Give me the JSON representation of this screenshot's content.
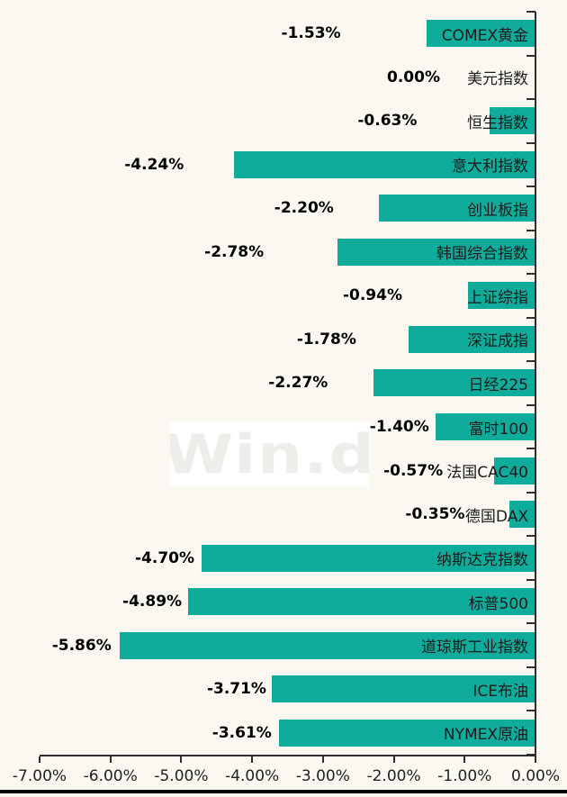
{
  "watermark": {
    "text": "Win.d"
  },
  "colors": {
    "bar": "#0FAC9B",
    "background": "#FAF8F0",
    "axis": "#2E2E2E",
    "value_label": "#000000",
    "category_label": "#1C1C1C",
    "watermark_bg": "#FFFFFF",
    "watermark_text": "#EDEDEA",
    "bottom_bar": "#000000"
  },
  "chart_data": {
    "type": "bar",
    "orientation": "horizontal",
    "title": "",
    "xlabel": "",
    "ylabel": "",
    "xlim": [
      -7,
      0
    ],
    "grid": false,
    "legend": false,
    "value_axis_position": "bottom",
    "category_axis_position": "right",
    "categories": [
      "COMEX黄金",
      "美元指数",
      "恒生指数",
      "意大利指数",
      "创业板指",
      "韩国综合指数",
      "上证综指",
      "深证成指",
      "日经225",
      "富时100",
      "法国CAC40",
      "德国DAX",
      "纳斯达克指数",
      "标普500",
      "道琼斯工业指数",
      "ICE布油",
      "NYMEX原油"
    ],
    "values": [
      -1.53,
      0.0,
      -0.63,
      -4.24,
      -2.2,
      -2.78,
      -0.94,
      -1.78,
      -2.27,
      -1.4,
      -0.57,
      -0.35,
      -4.7,
      -4.89,
      -5.86,
      -3.71,
      -3.61
    ],
    "value_labels": [
      "-1.53%",
      "0.00%",
      "-0.63%",
      "-4.24%",
      "-2.20%",
      "-2.78%",
      "-0.94%",
      "-1.78%",
      "-2.27%",
      "-1.40%",
      "-0.57%",
      "-0.35%",
      "-4.70%",
      "-4.89%",
      "-5.86%",
      "-3.71%",
      "-3.61%"
    ],
    "x_tick_labels": [
      "-7.00%",
      "-6.00%",
      "-5.00%",
      "-4.00%",
      "-3.00%",
      "-2.00%",
      "-1.00%",
      "0.00%"
    ]
  }
}
